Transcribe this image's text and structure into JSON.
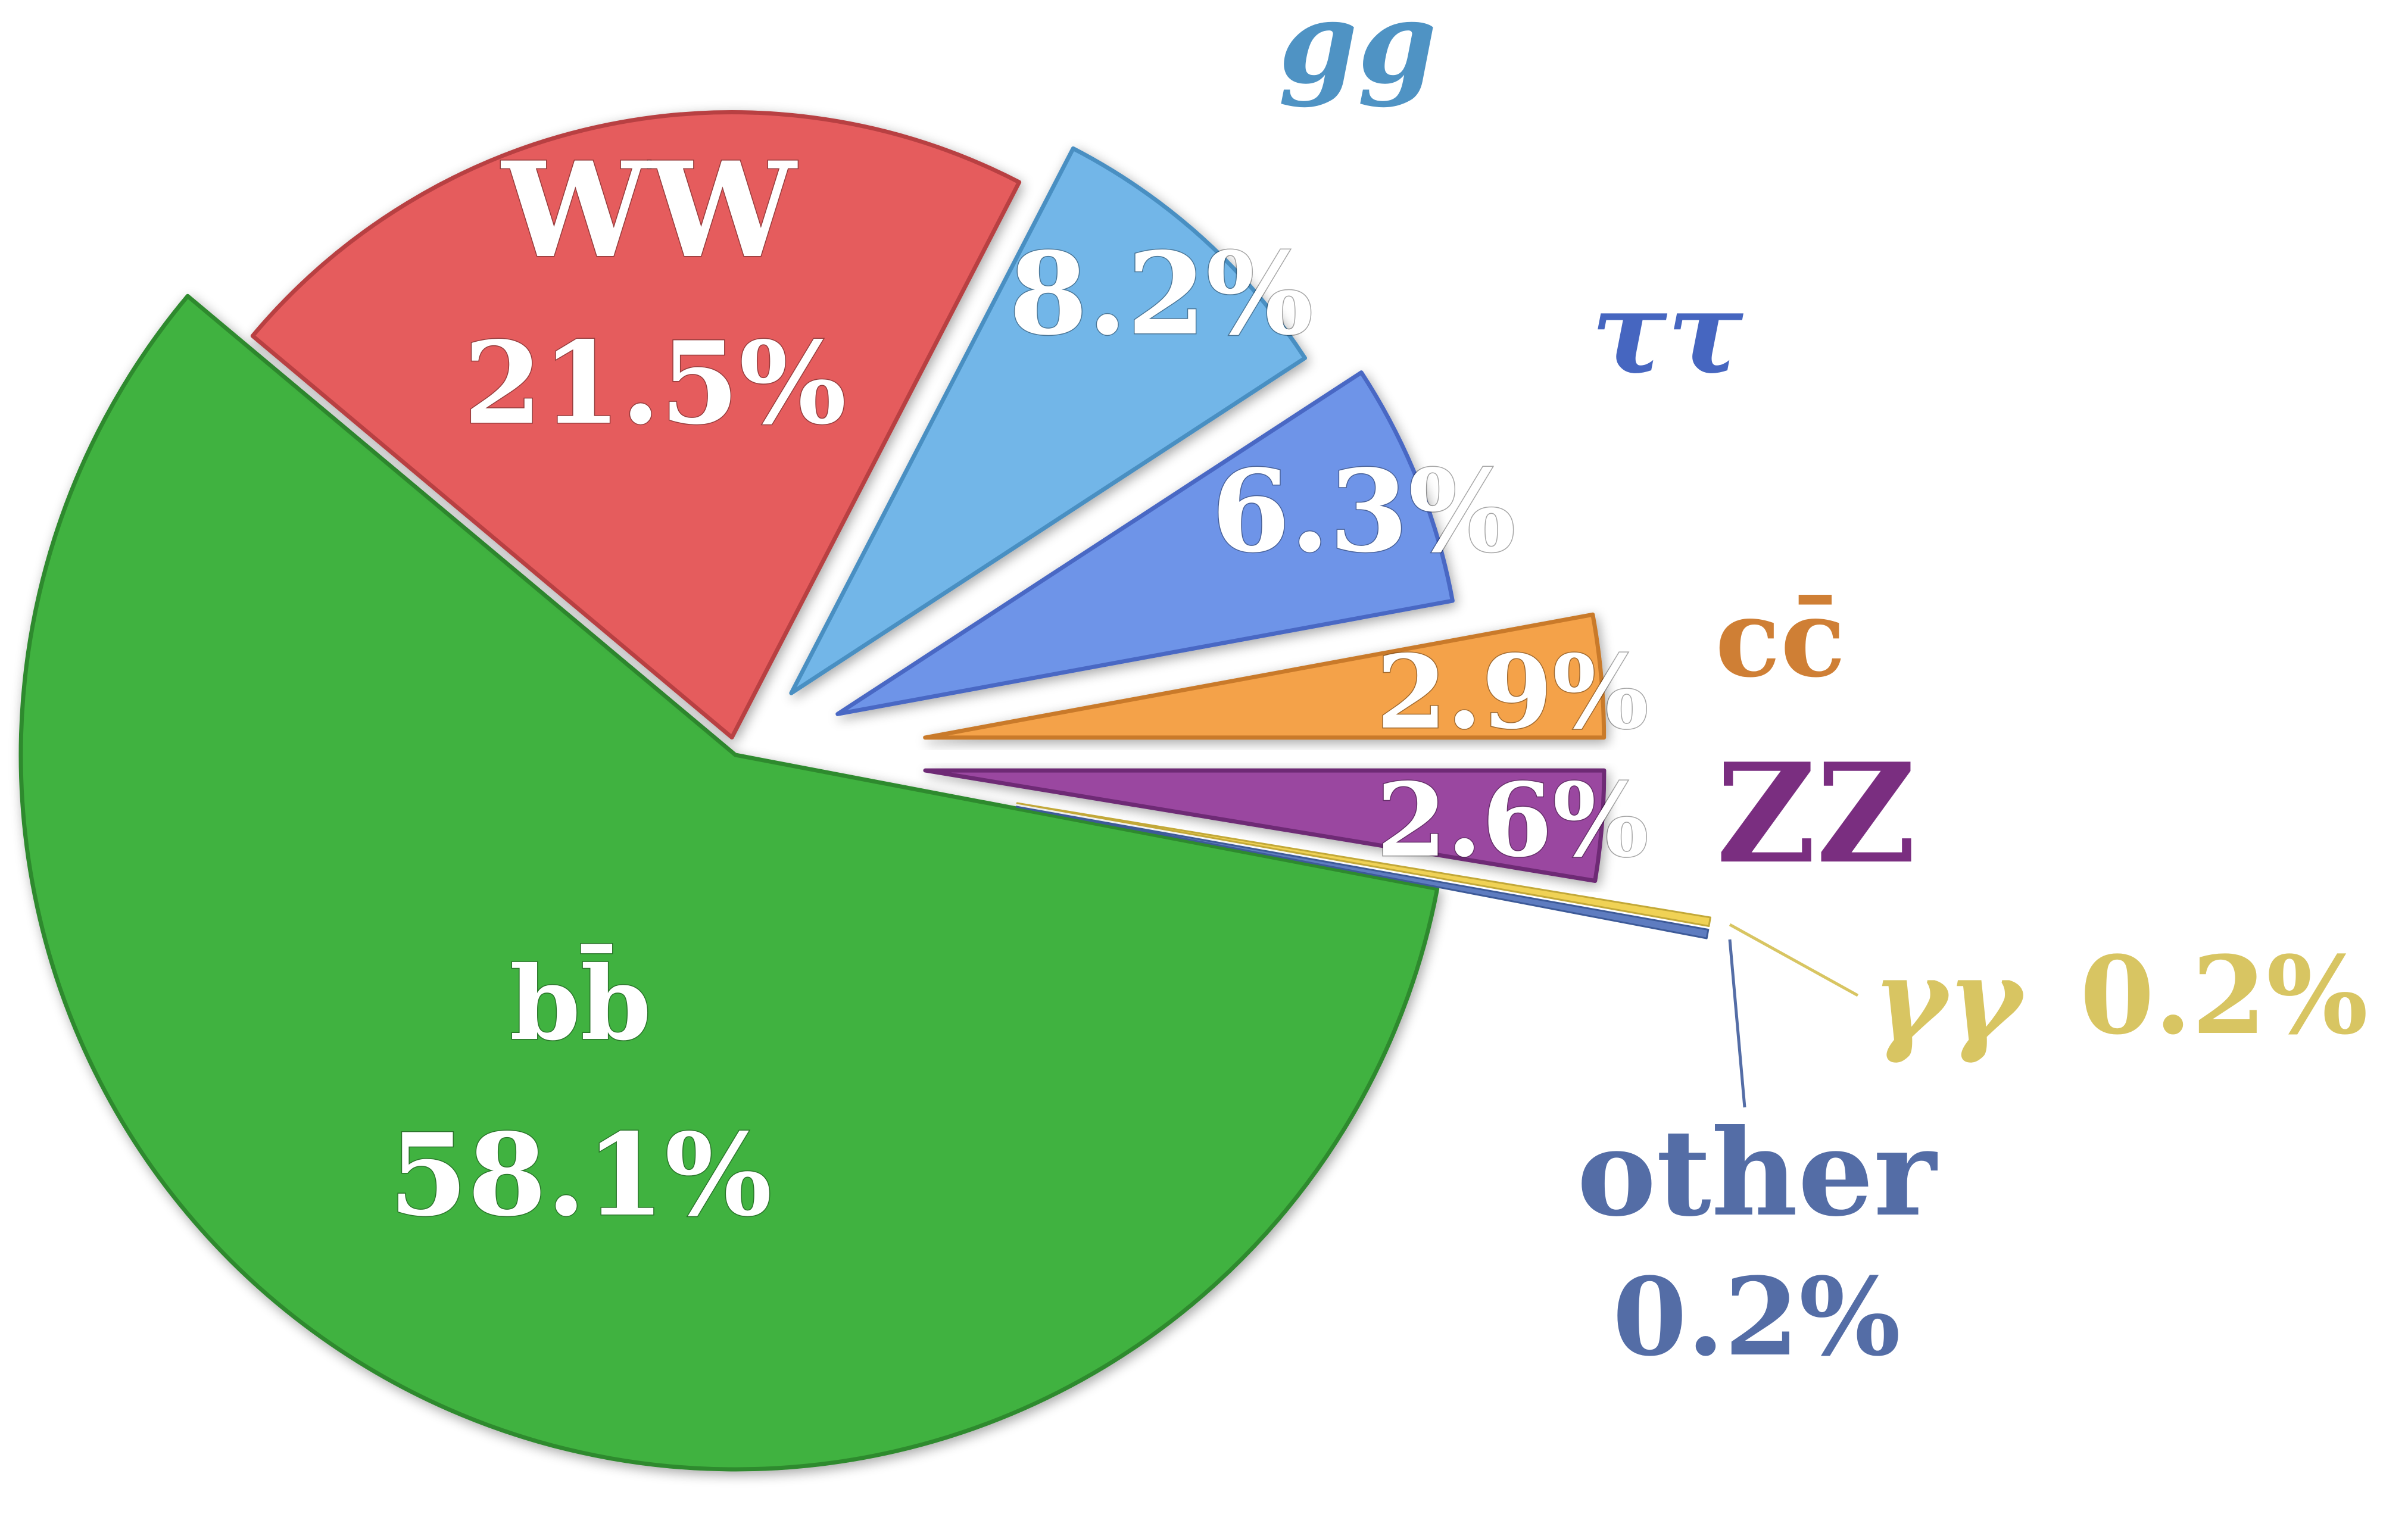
{
  "chart_data": {
    "type": "pie",
    "slices": [
      {
        "key": "bb",
        "label": "bb̄",
        "value": 58.1,
        "value_label": "58.1%",
        "color": "#41b23f",
        "edge": "#2f8a2d"
      },
      {
        "key": "ww",
        "label": "WW",
        "value": 21.5,
        "value_label": "21.5%",
        "color": "#e55b5d",
        "edge": "#b84143"
      },
      {
        "key": "gg",
        "label": "gg",
        "value": 8.2,
        "value_label": "8.2%",
        "color": "#72b6e8",
        "edge": "#4a8fc2",
        "text_color": "#4f93c4"
      },
      {
        "key": "tautau",
        "label": "ττ",
        "value": 6.3,
        "value_label": "6.3%",
        "color": "#6e94e8",
        "edge": "#4a68c4",
        "text_color": "#4666c0"
      },
      {
        "key": "cc",
        "label": "cc̄",
        "value": 2.9,
        "value_label": "2.9%",
        "color": "#f4a24a",
        "edge": "#c97a2a",
        "text_color": "#cf7f35"
      },
      {
        "key": "zz",
        "label": "ZZ",
        "value": 2.6,
        "value_label": "2.6%",
        "color": "#9a47a0",
        "edge": "#6e2b75",
        "text_color": "#7a2e80"
      },
      {
        "key": "gammagamma",
        "label": "γγ",
        "value": 0.2,
        "value_label": "0.2%",
        "color": "#f0d255",
        "edge": "#c2a838",
        "text_color": "#d8c562"
      },
      {
        "key": "other",
        "label": "other",
        "value": 0.2,
        "value_label": "0.2%",
        "color": "#5e7cc0",
        "edge": "#3d5a98",
        "text_color": "#546da6"
      }
    ]
  }
}
